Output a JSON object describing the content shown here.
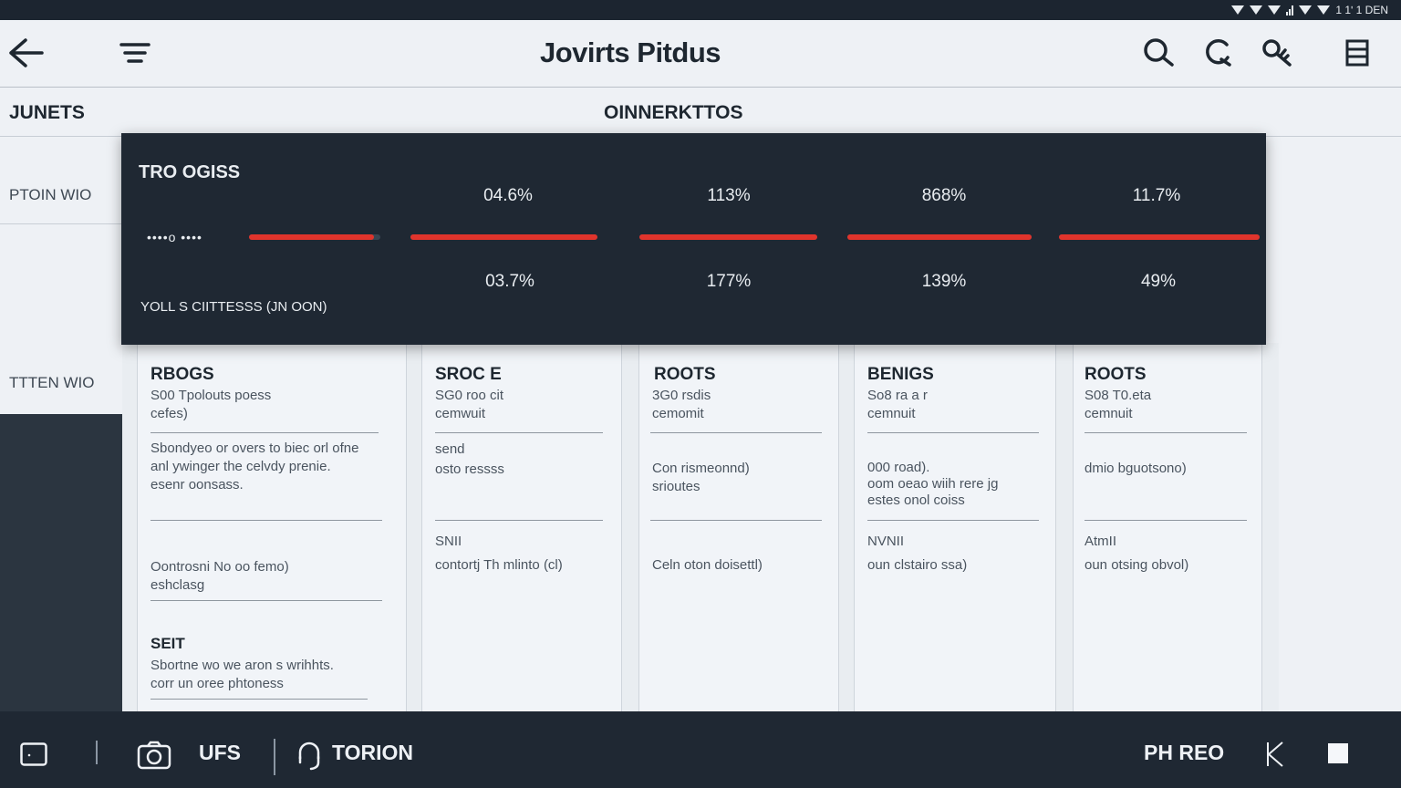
{
  "status": {
    "text": "1 1ʹ 1 DEN"
  },
  "app": {
    "title": "Jovirts Pitdus",
    "icons": [
      "back-arrow-icon",
      "menu-icon",
      "search-icon",
      "refresh-icon",
      "key-search-icon",
      "list-icon"
    ]
  },
  "tabs": {
    "left": "JUNETS",
    "center": "OINNERKTTOS"
  },
  "sidebar": {
    "items": [
      {
        "label": "PTOIN WIO"
      },
      {
        "label": "TTTEN WIO"
      }
    ]
  },
  "overlay": {
    "title": "TRO OGISS",
    "left_dots": "••••o   ••••",
    "top_values": [
      "04.6%",
      "113%",
      "868%",
      "11.7%"
    ],
    "bottom_values": [
      "03.7%",
      "177%",
      "139%",
      "49%"
    ],
    "progress": [
      0.95,
      1.0,
      1.0,
      1.0,
      1.0
    ],
    "footer": "YOLL S CIITTESSS (JN OON)",
    "accent": "#e0342c"
  },
  "cards": [
    {
      "title": "RBOGS",
      "subtitle": [
        "S00 Tpolouts poess",
        "cefes)"
      ],
      "body": [
        "Sbondyeo or overs to biec orl ofne",
        "anl ywinger the celvdy prenie.",
        "esenr oonsass."
      ],
      "note": [
        "Oontrosni No oo femo)",
        "eshclasg"
      ],
      "section": "SEIT",
      "section_text": [
        "Sbortne wo we aron s wrihhts.",
        "corr un oree phtoness"
      ]
    },
    {
      "title": "SROC E",
      "subtitle": [
        "SG0 roo cit",
        "cemwuit"
      ],
      "body": [
        "send",
        "osto ressss"
      ],
      "label": "SNII",
      "note": [
        "contortj Th mlinto (cl)"
      ]
    },
    {
      "title": "ROOTS",
      "subtitle": [
        "3G0 rsdis",
        "cemomit"
      ],
      "body": [
        "Con rismeonnd)",
        "srioutes"
      ],
      "note": [
        "Celn oton doisettl)"
      ]
    },
    {
      "title": "BENIGS",
      "subtitle": [
        "So8 ra a r",
        "cemnuit"
      ],
      "body": [
        "000 road).",
        "oom oeao wiih rere jg",
        "estes onol coiss"
      ],
      "label": "NVNII",
      "note": [
        "oun clstairo ssa)"
      ]
    },
    {
      "title": "ROOTS",
      "subtitle": [
        "S08 T0.eta",
        "cemnuit"
      ],
      "body": [
        "dmio bguotsono)"
      ],
      "label": "AtmII",
      "note": [
        "oun otsing obvol)"
      ]
    }
  ],
  "bottom": {
    "left_label": "UFS",
    "mid_label": "TORION",
    "right_label": "PH REO"
  }
}
